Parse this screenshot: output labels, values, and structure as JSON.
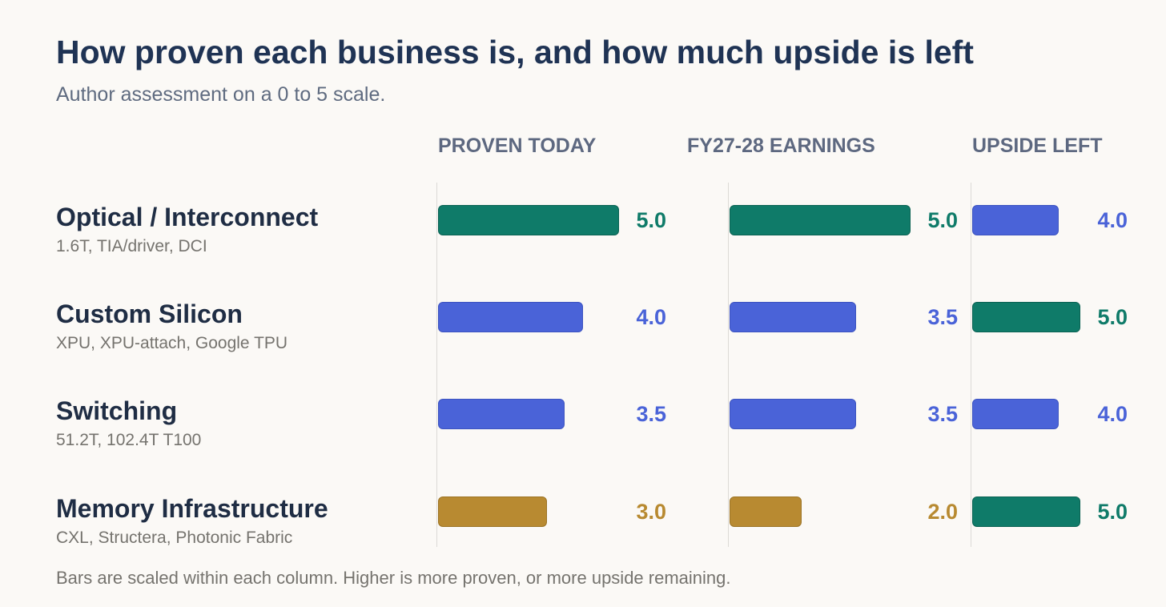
{
  "chart": {
    "title": "How proven each business is, and how much upside is left",
    "subtitle": "Author assessment on a 0 to 5 scale.",
    "footnote": "Bars are scaled within each column. Higher is more proven, or more upside remaining."
  },
  "colors": {
    "green": "#0f7b69",
    "blue": "#4a63d8",
    "gold": "#b88a31"
  },
  "chart_data": {
    "type": "bar",
    "orientation": "horizontal",
    "scale": [
      0,
      5
    ],
    "columns": [
      {
        "name": "PROVEN TODAY",
        "max_reference": 5.0
      },
      {
        "name": "FY27-28 EARNINGS",
        "max_reference": 5.0
      },
      {
        "name": "UPSIDE LEFT",
        "max_reference": 5.0
      }
    ],
    "categories": [
      {
        "name": "Optical / Interconnect",
        "detail": "1.6T, TIA/driver, DCI"
      },
      {
        "name": "Custom Silicon",
        "detail": "XPU, XPU-attach, Google TPU"
      },
      {
        "name": "Switching",
        "detail": "51.2T, 102.4T T100"
      },
      {
        "name": "Memory Infrastructure",
        "detail": "CXL, Structera, Photonic Fabric"
      }
    ],
    "series": [
      {
        "name": "PROVEN TODAY",
        "values": [
          5.0,
          4.0,
          3.5,
          3.0
        ],
        "colors": [
          "green",
          "blue",
          "blue",
          "gold"
        ]
      },
      {
        "name": "FY27-28 EARNINGS",
        "values": [
          5.0,
          3.5,
          3.5,
          2.0
        ],
        "colors": [
          "green",
          "blue",
          "blue",
          "gold"
        ]
      },
      {
        "name": "UPSIDE LEFT",
        "values": [
          4.0,
          5.0,
          4.0,
          5.0
        ],
        "colors": [
          "blue",
          "green",
          "blue",
          "green"
        ]
      }
    ],
    "value_labels": [
      [
        "5.0",
        "5.0",
        "4.0"
      ],
      [
        "4.0",
        "3.5",
        "5.0"
      ],
      [
        "3.5",
        "3.5",
        "4.0"
      ],
      [
        "3.0",
        "2.0",
        "5.0"
      ]
    ],
    "grid": false,
    "legend": "none"
  }
}
